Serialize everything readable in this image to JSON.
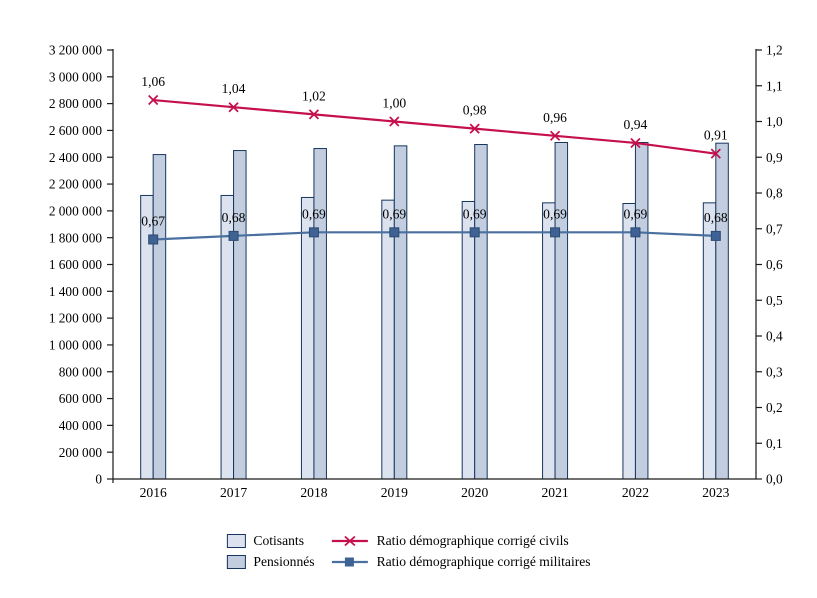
{
  "chart_data": {
    "type": "combo-bar-line",
    "title": "",
    "categories": [
      "2016",
      "2017",
      "2018",
      "2019",
      "2020",
      "2021",
      "2022",
      "2023"
    ],
    "bar_series": [
      {
        "name": "Cotisants",
        "axis": "left",
        "color": "#DCE3EF",
        "border_color": "#17365D",
        "values": [
          2115000,
          2115000,
          2100000,
          2080000,
          2070000,
          2060000,
          2055000,
          2060000
        ]
      },
      {
        "name": "Pensionnés",
        "axis": "left",
        "color": "#C2CEDF",
        "border_color": "#17365D",
        "values": [
          2420000,
          2450000,
          2465000,
          2485000,
          2495000,
          2510000,
          2510000,
          2505000
        ]
      }
    ],
    "line_series": [
      {
        "name": "Ratio démographique corrigé civils",
        "axis": "right",
        "color": "#C5104C",
        "marker": "x",
        "values": [
          1.06,
          1.04,
          1.02,
          1.0,
          0.98,
          0.96,
          0.94,
          0.91
        ],
        "labels": [
          "1,06",
          "1,04",
          "1,02",
          "1,00",
          "0,98",
          "0,96",
          "0,94",
          "0,91"
        ]
      },
      {
        "name": "Ratio démographique corrigé militaires",
        "axis": "right",
        "color": "#4A70A0",
        "marker": "square",
        "marker_color": "#3E6293",
        "values": [
          0.67,
          0.68,
          0.69,
          0.69,
          0.69,
          0.69,
          0.69,
          0.68
        ],
        "labels": [
          "0,67",
          "0,68",
          "0,69",
          "0,69",
          "0,69",
          "0,69",
          "0,69",
          "0,68"
        ]
      }
    ],
    "left_axis": {
      "min": 0,
      "max": 3200000,
      "step": 200000,
      "tick_labels": [
        "0",
        "200 000",
        "400 000",
        "600 000",
        "800 000",
        "1 000 000",
        "1 200 000",
        "1 400 000",
        "1 600 000",
        "1 800 000",
        "2 000 000",
        "2 200 000",
        "2 400 000",
        "2 600 000",
        "2 800 000",
        "3 000 000",
        "3 200 000"
      ]
    },
    "right_axis": {
      "min": 0,
      "max": 1.2,
      "step": 0.1,
      "tick_labels": [
        "0,0",
        "0,1",
        "0,2",
        "0,3",
        "0,4",
        "0,5",
        "0,6",
        "0,7",
        "0,8",
        "0,9",
        "1,0",
        "1,1",
        "1,2"
      ]
    },
    "grid": false,
    "legend_position": "bottom",
    "axis_color": "#1A1A1A"
  }
}
